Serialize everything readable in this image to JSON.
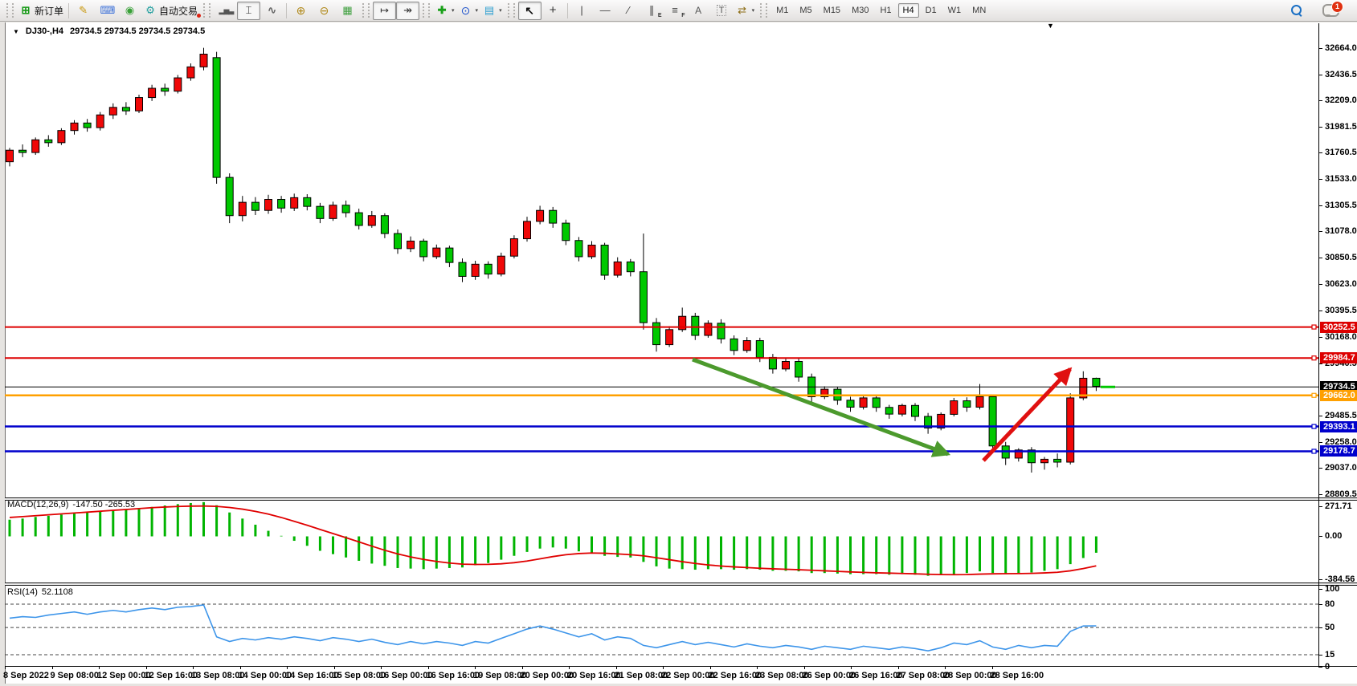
{
  "toolbar": {
    "new_order_label": "新订单",
    "auto_trading_label": "自动交易",
    "chat_badge": "1",
    "active_timeframe": "H4",
    "timeframes": [
      "M1",
      "M5",
      "M15",
      "M30",
      "H1",
      "H4",
      "D1",
      "W1",
      "MN"
    ],
    "items": [
      {
        "type": "grip"
      },
      {
        "type": "btn",
        "name": "new-order-button",
        "icon": "new-order-icon",
        "glyph": "⊞",
        "label_key": "new_order_label"
      },
      {
        "type": "sep"
      },
      {
        "type": "btn",
        "name": "crayon-button",
        "icon": "crayon-icon",
        "glyph": "✎"
      },
      {
        "type": "btn",
        "name": "terminal-button",
        "icon": "terminal-icon",
        "glyph": "⌨"
      },
      {
        "type": "btn",
        "name": "signal-button",
        "icon": "signal-icon",
        "glyph": "◉"
      },
      {
        "type": "btn",
        "name": "auto-trading-button",
        "icon": "auto-trading-icon",
        "glyph": "⚙",
        "label_key": "auto_trading_label"
      },
      {
        "type": "grip"
      },
      {
        "type": "btn",
        "name": "bars-chart-button",
        "icon": "bars-chart-icon",
        "glyph": "▂▅▃"
      },
      {
        "type": "btn",
        "name": "candles-chart-button",
        "icon": "candles-chart-icon",
        "glyph": "⌶",
        "pressed": true
      },
      {
        "type": "btn",
        "name": "line-chart-button",
        "icon": "line-chart-icon",
        "glyph": "∿"
      },
      {
        "type": "sep"
      },
      {
        "type": "btn",
        "name": "zoom-in-button",
        "icon": "zoom-in-icon",
        "glyph": "⊕"
      },
      {
        "type": "btn",
        "name": "zoom-out-button",
        "icon": "zoom-out-icon",
        "glyph": "⊖"
      },
      {
        "type": "btn",
        "name": "tile-windows-button",
        "icon": "tile-windows-icon",
        "glyph": "▦"
      },
      {
        "type": "grip"
      },
      {
        "type": "btn",
        "name": "auto-scroll-button",
        "icon": "auto-scroll-icon",
        "glyph": "↦",
        "pressed": true
      },
      {
        "type": "btn",
        "name": "chart-shift-button",
        "icon": "chart-shift-icon",
        "glyph": "↠",
        "pressed": true
      },
      {
        "type": "grip"
      },
      {
        "type": "btn",
        "name": "indicators-button",
        "icon": "indicators-icon",
        "glyph": "✚",
        "dropdown": true
      },
      {
        "type": "btn",
        "name": "periods-button",
        "icon": "periods-icon",
        "glyph": "⊙",
        "dropdown": true
      },
      {
        "type": "btn",
        "name": "templates-button",
        "icon": "templates-icon",
        "glyph": "▤",
        "dropdown": true
      },
      {
        "type": "grip"
      },
      {
        "type": "btn",
        "name": "cursor-button",
        "icon": "cursor-icon",
        "glyph": "↖",
        "pressed": true
      },
      {
        "type": "btn",
        "name": "crosshair-button",
        "icon": "crosshair-icon",
        "glyph": "+"
      },
      {
        "type": "sep"
      },
      {
        "type": "btn",
        "name": "vertical-line-button",
        "icon": "vline-icon",
        "glyph": "|"
      },
      {
        "type": "btn",
        "name": "horizontal-line-button",
        "icon": "hline-icon",
        "glyph": "—"
      },
      {
        "type": "btn",
        "name": "trend-line-button",
        "icon": "trendline-icon",
        "glyph": "∕"
      },
      {
        "type": "btn",
        "name": "channel-button",
        "icon": "channel-icon",
        "glyph": "∥",
        "sub": "E"
      },
      {
        "type": "btn",
        "name": "fibonacci-button",
        "icon": "fibonacci-icon",
        "glyph": "≡",
        "sub": "F"
      },
      {
        "type": "btn",
        "name": "text-button",
        "icon": "text-icon",
        "glyph": "A"
      },
      {
        "type": "btn",
        "name": "text-label-button",
        "icon": "text-label-icon",
        "glyph": "T"
      },
      {
        "type": "btn",
        "name": "arrows-tool-button",
        "icon": "arrows-tool-icon",
        "glyph": "⇄",
        "dropdown": true
      },
      {
        "type": "grip"
      },
      {
        "type": "timeframes"
      }
    ]
  },
  "chart": {
    "title": "DJ30-,H4",
    "ohlc_quote": "29734.5 29734.5 29734.5 29734.5",
    "current_price": 29734.5,
    "price_ticks": [
      32664.0,
      32436.5,
      32209.0,
      31981.5,
      31760.5,
      31533.0,
      31305.5,
      31078.0,
      30850.5,
      30623.0,
      30395.5,
      30168.0,
      29940.5,
      29485.5,
      29258.0,
      29037.0,
      28809.5
    ],
    "lines": [
      {
        "name": "resistance-line-1",
        "price": 30252.5,
        "color": "#dd0000",
        "width": 2
      },
      {
        "name": "resistance-line-2",
        "price": 29984.7,
        "color": "#dd0000",
        "width": 2
      },
      {
        "name": "current-price-line",
        "price": 29734.5,
        "color": "#000000",
        "width": 1,
        "current": true
      },
      {
        "name": "pivot-line",
        "price": 29662.0,
        "color": "#ffa000",
        "width": 2.5
      },
      {
        "name": "support-line-1",
        "price": 29393.1,
        "color": "#0000cc",
        "width": 2.5
      },
      {
        "name": "support-line-2",
        "price": 29178.7,
        "color": "#0000cc",
        "width": 2.5
      }
    ],
    "time_labels": [
      "8 Sep 2022",
      "9 Sep 08:00",
      "12 Sep 00:00",
      "12 Sep 16:00",
      "13 Sep 08:00",
      "14 Sep 00:00",
      "14 Sep 16:00",
      "15 Sep 08:00",
      "16 Sep 00:00",
      "16 Sep 16:00",
      "19 Sep 08:00",
      "20 Sep 00:00",
      "20 Sep 16:00",
      "21 Sep 08:00",
      "22 Sep 00:00",
      "22 Sep 16:00",
      "23 Sep 08:00",
      "26 Sep 00:00",
      "26 Sep 16:00",
      "27 Sep 08:00",
      "28 Sep 00:00",
      "28 Sep 16:00"
    ]
  },
  "indicators": {
    "macd": {
      "label": "MACD(12,26,9)",
      "values_label": "-147.50 -265.53",
      "axis_labels": [
        "271.71",
        "0.00",
        "-384.56"
      ],
      "axis_values": [
        271.71,
        0,
        -384.56
      ]
    },
    "rsi": {
      "label": "RSI(14)",
      "value_label": "52.1108",
      "axis_values": [
        100,
        80,
        50,
        15,
        0
      ],
      "level_lines": [
        80,
        50,
        15
      ]
    }
  },
  "chart_data": [
    {
      "type": "candlestick",
      "symbol": "DJ30-",
      "timeframe": "H4",
      "up_color": "#f00808",
      "down_color": "#00c800",
      "ylim": [
        28780,
        32745
      ],
      "candles": [
        [
          31680,
          31800,
          31640,
          31780
        ],
        [
          31780,
          31830,
          31720,
          31760
        ],
        [
          31760,
          31890,
          31740,
          31870
        ],
        [
          31870,
          31910,
          31810,
          31845
        ],
        [
          31845,
          31970,
          31825,
          31950
        ],
        [
          31950,
          32040,
          31915,
          32015
        ],
        [
          32015,
          32050,
          31940,
          31975
        ],
        [
          31975,
          32110,
          31950,
          32085
        ],
        [
          32085,
          32185,
          32050,
          32150
        ],
        [
          32150,
          32195,
          32085,
          32120
        ],
        [
          32120,
          32260,
          32100,
          32235
        ],
        [
          32235,
          32345,
          32205,
          32315
        ],
        [
          32315,
          32355,
          32250,
          32290
        ],
        [
          32290,
          32430,
          32270,
          32405
        ],
        [
          32405,
          32530,
          32380,
          32500
        ],
        [
          32500,
          32664,
          32470,
          32610
        ],
        [
          32580,
          32630,
          31490,
          31545
        ],
        [
          31545,
          31580,
          31150,
          31215
        ],
        [
          31215,
          31385,
          31165,
          31330
        ],
        [
          31330,
          31375,
          31220,
          31260
        ],
        [
          31260,
          31395,
          31230,
          31355
        ],
        [
          31355,
          31385,
          31240,
          31280
        ],
        [
          31280,
          31405,
          31255,
          31370
        ],
        [
          31370,
          31400,
          31260,
          31295
        ],
        [
          31295,
          31325,
          31150,
          31190
        ],
        [
          31190,
          31335,
          31170,
          31305
        ],
        [
          31305,
          31345,
          31200,
          31240
        ],
        [
          31240,
          31275,
          31095,
          31130
        ],
        [
          31130,
          31255,
          31110,
          31215
        ],
        [
          31215,
          31235,
          31020,
          31060
        ],
        [
          31060,
          31095,
          30885,
          30930
        ],
        [
          30930,
          31035,
          30900,
          30995
        ],
        [
          30995,
          31015,
          30820,
          30860
        ],
        [
          30860,
          30965,
          30840,
          30935
        ],
        [
          30935,
          30955,
          30770,
          30810
        ],
        [
          30810,
          30845,
          30640,
          30690
        ],
        [
          30690,
          30825,
          30660,
          30795
        ],
        [
          30795,
          30820,
          30670,
          30710
        ],
        [
          30710,
          30895,
          30690,
          30865
        ],
        [
          30865,
          31045,
          30845,
          31015
        ],
        [
          31015,
          31205,
          30990,
          31165
        ],
        [
          31165,
          31300,
          31140,
          31260
        ],
        [
          31260,
          31290,
          31110,
          31150
        ],
        [
          31150,
          31180,
          30960,
          31000
        ],
        [
          31000,
          31030,
          30820,
          30860
        ],
        [
          30860,
          30995,
          30840,
          30960
        ],
        [
          30960,
          30980,
          30660,
          30700
        ],
        [
          30700,
          30855,
          30680,
          30815
        ],
        [
          30815,
          30840,
          30690,
          30730
        ],
        [
          30730,
          31060,
          30230,
          30290
        ],
        [
          30290,
          30330,
          30040,
          30100
        ],
        [
          30100,
          30260,
          30080,
          30230
        ],
        [
          30230,
          30420,
          30210,
          30345
        ],
        [
          30345,
          30375,
          30140,
          30180
        ],
        [
          30180,
          30310,
          30160,
          30285
        ],
        [
          30285,
          30320,
          30110,
          30150
        ],
        [
          30150,
          30180,
          30010,
          30050
        ],
        [
          30050,
          30165,
          30030,
          30135
        ],
        [
          30135,
          30160,
          29950,
          29990
        ],
        [
          29990,
          30020,
          29850,
          29890
        ],
        [
          29890,
          29985,
          29870,
          29955
        ],
        [
          29955,
          29980,
          29780,
          29820
        ],
        [
          29820,
          29850,
          29590,
          29650
        ],
        [
          29650,
          29740,
          29630,
          29715
        ],
        [
          29715,
          29735,
          29580,
          29620
        ],
        [
          29620,
          29650,
          29520,
          29560
        ],
        [
          29560,
          29655,
          29540,
          29640
        ],
        [
          29640,
          29665,
          29520,
          29558
        ],
        [
          29558,
          29580,
          29460,
          29500
        ],
        [
          29500,
          29590,
          29480,
          29575
        ],
        [
          29575,
          29595,
          29440,
          29480
        ],
        [
          29480,
          29510,
          29330,
          29380
        ],
        [
          29380,
          29515,
          29360,
          29498
        ],
        [
          29498,
          29640,
          29480,
          29615
        ],
        [
          29615,
          29645,
          29520,
          29560
        ],
        [
          29560,
          29760,
          29540,
          29650
        ],
        [
          29650,
          29670,
          29180,
          29225
        ],
        [
          29225,
          29260,
          29060,
          29120
        ],
        [
          29120,
          29205,
          29090,
          29190
        ],
        [
          29190,
          29215,
          28995,
          29080
        ],
        [
          29080,
          29130,
          29020,
          29110
        ],
        [
          29110,
          29160,
          29040,
          29085
        ],
        [
          29085,
          29680,
          29065,
          29640
        ],
        [
          29640,
          29870,
          29620,
          29810
        ],
        [
          29810,
          29815,
          29700,
          29740
        ]
      ]
    },
    {
      "type": "bar",
      "name": "MACD(12,26,9)",
      "histogram_color": "#00b400",
      "signal_color": "#e00000",
      "ylim": [
        -408,
        314
      ],
      "last_macd": -147.5,
      "last_signal": -265.53,
      "values": [
        150,
        160,
        175,
        185,
        195,
        205,
        215,
        225,
        235,
        245,
        255,
        265,
        278,
        290,
        300,
        308,
        280,
        215,
        160,
        105,
        50,
        5,
        -40,
        -85,
        -130,
        -160,
        -190,
        -220,
        -245,
        -265,
        -285,
        -290,
        -295,
        -290,
        -285,
        -280,
        -260,
        -240,
        -210,
        -175,
        -140,
        -110,
        -100,
        -110,
        -135,
        -150,
        -175,
        -185,
        -190,
        -230,
        -270,
        -290,
        -295,
        -300,
        -295,
        -295,
        -300,
        -295,
        -300,
        -310,
        -310,
        -315,
        -330,
        -330,
        -335,
        -340,
        -340,
        -340,
        -345,
        -340,
        -345,
        -355,
        -350,
        -340,
        -330,
        -315,
        -330,
        -340,
        -330,
        -325,
        -310,
        -295,
        -250,
        -195,
        -147.5
      ],
      "signal": [
        170,
        178,
        186,
        194,
        202,
        210,
        218,
        226,
        234,
        242,
        250,
        258,
        264,
        269,
        272,
        273,
        270,
        260,
        245,
        225,
        200,
        170,
        135,
        100,
        62,
        25,
        -12,
        -50,
        -88,
        -125,
        -158,
        -185,
        -208,
        -226,
        -240,
        -250,
        -253,
        -252,
        -247,
        -237,
        -222,
        -202,
        -182,
        -165,
        -155,
        -150,
        -152,
        -158,
        -165,
        -175,
        -192,
        -210,
        -228,
        -244,
        -257,
        -267,
        -275,
        -281,
        -287,
        -292,
        -296,
        -300,
        -305,
        -310,
        -315,
        -320,
        -324,
        -328,
        -331,
        -334,
        -337,
        -341,
        -344,
        -345,
        -344,
        -340,
        -337,
        -336,
        -335,
        -333,
        -329,
        -323,
        -310,
        -290,
        -265.5
      ]
    },
    {
      "type": "line",
      "name": "RSI(14)",
      "line_color": "#3d95ea",
      "ylim": [
        0,
        100
      ],
      "levels": [
        80,
        50,
        15
      ],
      "last": 52.1108,
      "values": [
        62,
        64,
        63,
        66,
        68,
        70,
        67,
        70,
        72,
        70,
        73,
        75,
        73,
        76,
        77,
        79,
        38,
        32,
        36,
        34,
        37,
        35,
        38,
        36,
        33,
        37,
        35,
        32,
        35,
        31,
        28,
        32,
        29,
        32,
        30,
        27,
        32,
        30,
        36,
        42,
        48,
        52,
        48,
        43,
        38,
        42,
        34,
        38,
        36,
        27,
        24,
        28,
        32,
        28,
        31,
        28,
        25,
        29,
        26,
        24,
        27,
        25,
        22,
        26,
        24,
        22,
        26,
        24,
        22,
        25,
        23,
        20,
        24,
        30,
        28,
        33,
        25,
        22,
        27,
        24,
        27,
        26,
        45,
        52,
        52.11
      ]
    }
  ],
  "annotations": [
    {
      "name": "down-trend-arrow",
      "color": "#4c9a2d",
      "from": [
        862,
        448
      ],
      "to": [
        1180,
        566
      ]
    },
    {
      "name": "up-reversal-arrow",
      "color": "#e01010",
      "from": [
        1224,
        574
      ],
      "to": [
        1332,
        460
      ]
    }
  ]
}
